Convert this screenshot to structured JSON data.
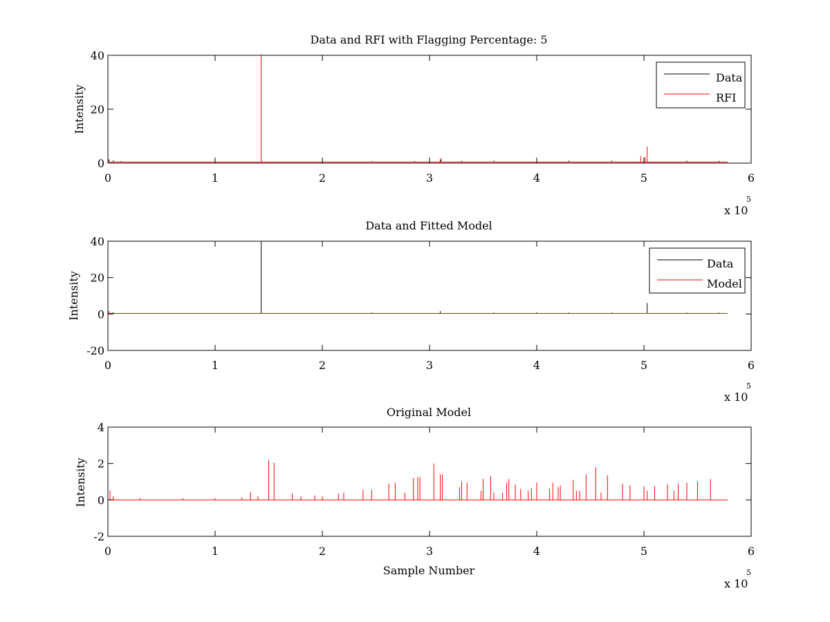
{
  "colors": {
    "data": "#000000",
    "rfi": "#ff0000",
    "model": "#ff0000",
    "axes": "#000000",
    "background": "#ffffff"
  },
  "chart_data": [
    {
      "id": "panel1",
      "type": "line",
      "title": "Data and RFI with Flagging Percentage: 5",
      "xlabel": "",
      "ylabel": "Intensity",
      "xlim": [
        0,
        600000
      ],
      "ylim": [
        0,
        40
      ],
      "xticks": [
        0,
        100000,
        200000,
        300000,
        400000,
        500000,
        600000
      ],
      "xtick_labels": [
        "0",
        "1",
        "2",
        "3",
        "4",
        "5",
        "6"
      ],
      "yticks": [
        0,
        20,
        40
      ],
      "ytick_labels": [
        "0",
        "20",
        "40"
      ],
      "x_multiplier": {
        "text": "x 10",
        "exponent": "5"
      },
      "legend_position": "top-right",
      "series": [
        {
          "name": "Data",
          "color": "#000000",
          "baseline": 0.4,
          "x_end": 578000,
          "spikes": [
            [
              1000,
              1.4
            ],
            [
              5000,
              1.0
            ],
            [
              12000,
              0.7
            ],
            [
              100000,
              0.6
            ],
            [
              200000,
              0.6
            ],
            [
              246000,
              0.7
            ],
            [
              286000,
              0.8
            ],
            [
              310000,
              1.4
            ],
            [
              330000,
              0.8
            ],
            [
              360000,
              0.9
            ],
            [
              400000,
              0.9
            ],
            [
              430000,
              0.9
            ],
            [
              470000,
              0.9
            ],
            [
              500000,
              1.0
            ],
            [
              540000,
              0.9
            ],
            [
              570000,
              0.8
            ]
          ]
        },
        {
          "name": "RFI",
          "color": "#ff0000",
          "baseline": 0.4,
          "x_end": 578000,
          "spikes": [
            [
              143000,
              40
            ],
            [
              311000,
              1.8
            ],
            [
              497000,
              2.6
            ],
            [
              501000,
              2.2
            ],
            [
              503000,
              6.1
            ]
          ]
        }
      ]
    },
    {
      "id": "panel2",
      "type": "line",
      "title": "Data and Fitted Model",
      "xlabel": "",
      "ylabel": "Intensity",
      "xlim": [
        0,
        600000
      ],
      "ylim": [
        -20,
        40
      ],
      "xticks": [
        0,
        100000,
        200000,
        300000,
        400000,
        500000,
        600000
      ],
      "xtick_labels": [
        "0",
        "1",
        "2",
        "3",
        "4",
        "5",
        "6"
      ],
      "yticks": [
        -20,
        0,
        20,
        40
      ],
      "ytick_labels": [
        "-20",
        "0",
        "20",
        "40"
      ],
      "x_multiplier": {
        "text": "x 10",
        "exponent": "5"
      },
      "legend_position": "top-right",
      "series": [
        {
          "name": "Data",
          "color": "#000000",
          "baseline": 0.3,
          "x_end": 578000,
          "spikes": [
            [
              1000,
              1.5
            ],
            [
              5000,
              1.0
            ],
            [
              143000,
              40
            ],
            [
              246000,
              0.8
            ],
            [
              310000,
              1.6
            ],
            [
              360000,
              0.8
            ],
            [
              400000,
              0.9
            ],
            [
              430000,
              0.8
            ],
            [
              470000,
              0.8
            ],
            [
              503000,
              6
            ],
            [
              540000,
              0.8
            ],
            [
              570000,
              0.8
            ]
          ]
        },
        {
          "name": "Model",
          "color": "#ff0000",
          "baseline": 0.3,
          "x_end": 578000,
          "spikes": [
            [
              1000,
              1.0
            ],
            [
              310000,
              0.6
            ],
            [
              503000,
              0.5
            ]
          ]
        }
      ]
    },
    {
      "id": "panel3",
      "type": "line",
      "title": "Original Model",
      "xlabel": "Sample Number",
      "ylabel": "Intensity",
      "xlim": [
        0,
        600000
      ],
      "ylim": [
        -2,
        4
      ],
      "xticks": [
        0,
        100000,
        200000,
        300000,
        400000,
        500000,
        600000
      ],
      "xtick_labels": [
        "0",
        "1",
        "2",
        "3",
        "4",
        "5",
        "6"
      ],
      "yticks": [
        -2,
        0,
        2,
        4
      ],
      "ytick_labels": [
        "-2",
        "0",
        "2",
        "4"
      ],
      "x_multiplier": {
        "text": "x 10",
        "exponent": "5"
      },
      "series": [
        {
          "name": "",
          "color": "#ff0000",
          "baseline": 0,
          "x_end": 578000,
          "spikes": [
            [
              2000,
              0.5
            ],
            [
              5000,
              0.2
            ],
            [
              30000,
              0.1
            ],
            [
              70000,
              0.1
            ],
            [
              100000,
              0.1
            ],
            [
              125000,
              0.15
            ],
            [
              133000,
              0.45
            ],
            [
              140000,
              0.2
            ],
            [
              150000,
              2.2
            ],
            [
              155000,
              2.05
            ],
            [
              172000,
              0.35
            ],
            [
              180000,
              0.2
            ],
            [
              193000,
              0.25
            ],
            [
              200000,
              0.2
            ],
            [
              215000,
              0.35
            ],
            [
              220000,
              0.4
            ],
            [
              238000,
              0.55
            ],
            [
              246000,
              0.55
            ],
            [
              262000,
              0.9
            ],
            [
              268000,
              0.95
            ],
            [
              277000,
              0.4
            ],
            [
              285000,
              1.2
            ],
            [
              289000,
              1.25
            ],
            [
              291000,
              1.25
            ],
            [
              304000,
              2.0
            ],
            [
              310000,
              1.4
            ],
            [
              312000,
              1.4
            ],
            [
              328000,
              0.7
            ],
            [
              330000,
              1.0
            ],
            [
              335000,
              0.95
            ],
            [
              348000,
              0.5
            ],
            [
              350000,
              1.15
            ],
            [
              357000,
              1.3
            ],
            [
              360000,
              0.4
            ],
            [
              368000,
              0.4
            ],
            [
              372000,
              0.95
            ],
            [
              374000,
              1.15
            ],
            [
              380000,
              0.85
            ],
            [
              385000,
              0.6
            ],
            [
              392000,
              0.5
            ],
            [
              395000,
              0.65
            ],
            [
              400000,
              0.95
            ],
            [
              412000,
              0.6
            ],
            [
              415000,
              0.95
            ],
            [
              420000,
              0.7
            ],
            [
              422000,
              0.8
            ],
            [
              434000,
              1.1
            ],
            [
              437000,
              0.5
            ],
            [
              440000,
              0.5
            ],
            [
              446000,
              1.4
            ],
            [
              455000,
              1.8
            ],
            [
              460000,
              0.4
            ],
            [
              466000,
              1.35
            ],
            [
              480000,
              0.9
            ],
            [
              487000,
              0.8
            ],
            [
              500000,
              0.75
            ],
            [
              503000,
              0.5
            ],
            [
              510000,
              0.75
            ],
            [
              522000,
              0.85
            ],
            [
              528000,
              0.5
            ],
            [
              532000,
              0.9
            ],
            [
              540000,
              0.95
            ],
            [
              550000,
              1.0
            ],
            [
              562000,
              1.15
            ]
          ]
        }
      ]
    }
  ]
}
